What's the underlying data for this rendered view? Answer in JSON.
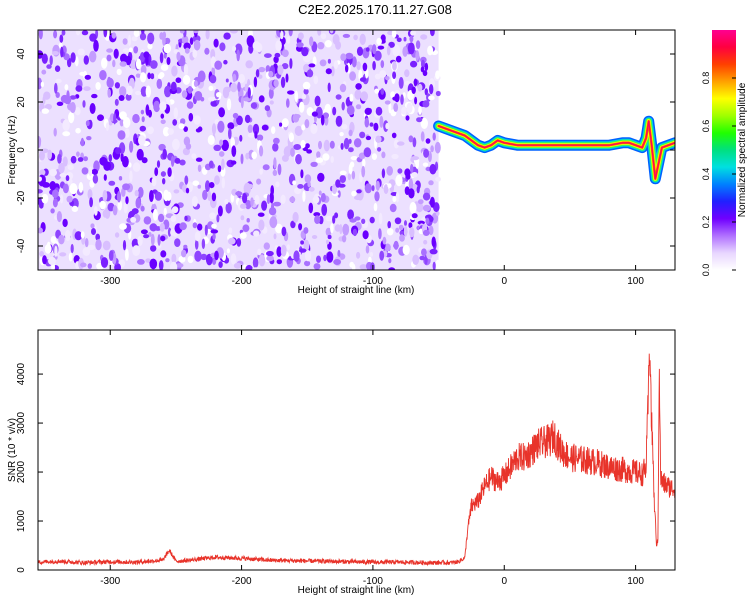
{
  "title": "C2E2.2025.170.11.27.G08",
  "chart_data": [
    {
      "type": "heatmap",
      "xlabel": "Height of straight line (km)",
      "ylabel": "Frequency (Hz)",
      "xlim": [
        -355,
        130
      ],
      "ylim": [
        -50,
        50
      ],
      "x_ticks": [
        -300,
        -200,
        -100,
        0,
        100
      ],
      "x_tick_labels": [
        "-300",
        "-200",
        "-100",
        "0",
        "100"
      ],
      "y_ticks": [
        -40,
        -20,
        0,
        20,
        40
      ],
      "y_tick_labels": [
        "-40",
        "-20",
        "0",
        "20",
        "40"
      ],
      "noise_region_x": [
        -355,
        -50
      ],
      "signal_region_x": [
        -50,
        130
      ],
      "signal_trace": {
        "x": [
          -50,
          -40,
          -30,
          -20,
          -15,
          -10,
          -5,
          0,
          10,
          20,
          40,
          60,
          80,
          90,
          95,
          100,
          105,
          108,
          110,
          112,
          115,
          120,
          130
        ],
        "y": [
          10,
          8,
          6,
          2,
          1,
          2,
          4,
          3,
          2,
          2,
          2,
          2,
          2,
          3,
          3,
          2,
          1,
          5,
          12,
          3,
          -12,
          1,
          3
        ]
      },
      "colorbar": {
        "label": "Normalized spectral amplitude",
        "range": [
          0,
          1
        ],
        "ticks": [
          0.0,
          0.2,
          0.4,
          0.6,
          0.8
        ],
        "tick_labels": [
          "0.0",
          "0.2",
          "0.4",
          "0.6",
          "0.8"
        ],
        "colors": [
          "#ffffff",
          "#e8d6ff",
          "#b070ff",
          "#7000ff",
          "#2020ff",
          "#0080ff",
          "#00e0e0",
          "#00e080",
          "#20ff00",
          "#a0ff00",
          "#ffff00",
          "#ffa000",
          "#ff4000",
          "#ff0040",
          "#ff0090"
        ]
      },
      "grid": false
    },
    {
      "type": "line",
      "xlabel": "Height of straight line (km)",
      "ylabel": "SNR (10 * v/v)",
      "xlim": [
        -355,
        130
      ],
      "ylim": [
        0,
        4900
      ],
      "x_ticks": [
        -300,
        -200,
        -100,
        0,
        100
      ],
      "x_tick_labels": [
        "-300",
        "-200",
        "-100",
        "0",
        "100"
      ],
      "y_ticks": [
        0,
        1000,
        2000,
        3000,
        4000
      ],
      "y_tick_labels": [
        "0",
        "1000",
        "2000",
        "3000",
        "4000"
      ],
      "line_color": "#e8332a",
      "series": [
        {
          "x": [
            -355,
            -340,
            -320,
            -300,
            -280,
            -260,
            -255,
            -250,
            -240,
            -220,
            -200,
            -180,
            -160,
            -140,
            -120,
            -100,
            -80,
            -60,
            -40,
            -35,
            -30,
            -28,
            -25,
            -20,
            -15,
            -10,
            -5,
            0,
            5,
            10,
            15,
            20,
            25,
            30,
            35,
            38,
            40,
            45,
            50,
            60,
            70,
            80,
            90,
            100,
            105,
            108,
            110,
            111,
            112,
            113,
            114,
            115,
            116,
            117,
            118,
            119,
            120,
            125,
            130
          ],
          "y": [
            160,
            180,
            150,
            170,
            160,
            200,
            400,
            180,
            200,
            260,
            240,
            200,
            190,
            180,
            170,
            160,
            160,
            150,
            150,
            170,
            250,
            800,
            1300,
            1400,
            1700,
            1900,
            1800,
            1900,
            2100,
            2300,
            2300,
            2400,
            2550,
            2600,
            2650,
            2750,
            2600,
            2400,
            2300,
            2250,
            2200,
            2100,
            2050,
            2000,
            1950,
            2100,
            3800,
            4800,
            3000,
            2600,
            1500,
            1000,
            500,
            600,
            4400,
            1900,
            1800,
            1700,
            1650
          ]
        }
      ],
      "grid": false
    }
  ]
}
